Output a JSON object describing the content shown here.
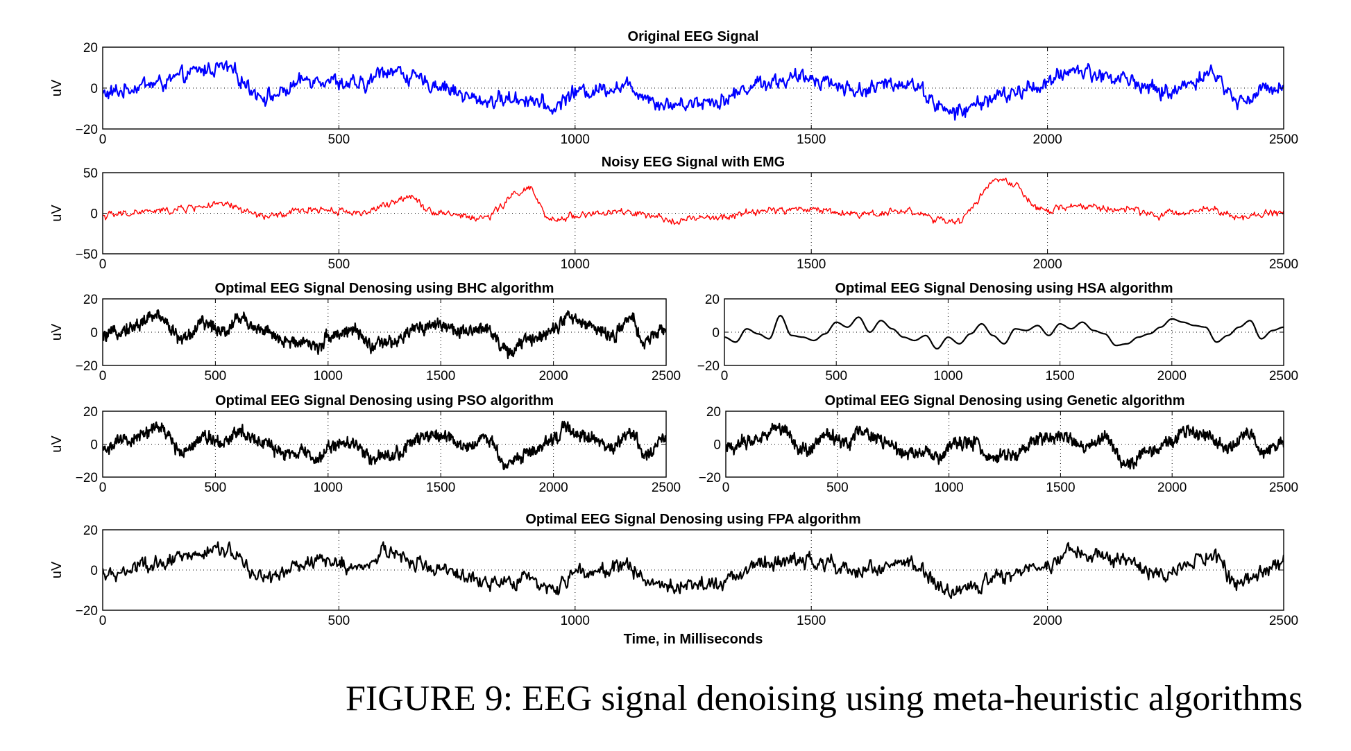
{
  "caption": "FIGURE 9: EEG signal denoising using meta-heuristic algorithms",
  "chart_data": [
    {
      "type": "line",
      "title": "Original EEG Signal",
      "ylabel": "uV",
      "xlabel": "",
      "xlim": [
        0,
        2500
      ],
      "ylim": [
        -20,
        20
      ],
      "xticks": [
        "0",
        "500",
        "1000",
        "1500",
        "2000",
        "2500"
      ],
      "yticks": [
        "20",
        "0",
        "−20"
      ],
      "grid": "dotted",
      "color": "#0000ff",
      "series": [
        {
          "x": [
            0,
            100,
            250,
            350,
            450,
            550,
            600,
            700,
            800,
            900,
            950,
            1000,
            1100,
            1200,
            1300,
            1400,
            1500,
            1600,
            1700,
            1800,
            1900,
            2000,
            2050,
            2150,
            2250,
            2350,
            2400,
            2500
          ],
          "values": [
            -3,
            2,
            10,
            -4,
            5,
            1,
            9,
            2,
            -6,
            -5,
            -10,
            -2,
            1,
            -8,
            -6,
            3,
            5,
            -1,
            3,
            -12,
            -4,
            2,
            9,
            5,
            -2,
            7,
            -6,
            2
          ]
        }
      ]
    },
    {
      "type": "line",
      "title": "Noisy EEG Signal with EMG",
      "ylabel": "uV",
      "xlabel": "",
      "xlim": [
        0,
        2500
      ],
      "ylim": [
        -50,
        50
      ],
      "xticks": [
        "0",
        "500",
        "1000",
        "1500",
        "2000",
        "2500"
      ],
      "yticks": [
        "50",
        "0",
        "−50"
      ],
      "grid": "dotted",
      "color": "#ff0000",
      "series": [
        {
          "x": [
            0,
            100,
            250,
            350,
            450,
            550,
            600,
            650,
            700,
            800,
            900,
            950,
            1000,
            1100,
            1200,
            1300,
            1400,
            1500,
            1600,
            1700,
            1800,
            1900,
            2000,
            2050,
            2150,
            2250,
            2350,
            2400,
            2500
          ],
          "values": [
            -3,
            2,
            10,
            -4,
            5,
            1,
            9,
            22,
            2,
            -6,
            30,
            -10,
            -2,
            1,
            -8,
            -6,
            3,
            5,
            -1,
            3,
            -12,
            42,
            2,
            9,
            5,
            -2,
            7,
            -6,
            2
          ]
        }
      ]
    },
    {
      "type": "line",
      "title": "Optimal EEG Signal Denosing using BHC algorithm",
      "ylabel": "uV",
      "xlabel": "",
      "xlim": [
        0,
        2500
      ],
      "ylim": [
        -20,
        20
      ],
      "xticks": [
        "0",
        "500",
        "1000",
        "1500",
        "2000",
        "2500"
      ],
      "yticks": [
        "20",
        "0",
        "−20"
      ],
      "grid": "dotted",
      "color": "#000000",
      "series": [
        {
          "x": [
            0,
            100,
            250,
            350,
            450,
            550,
            600,
            700,
            800,
            900,
            950,
            1000,
            1100,
            1200,
            1300,
            1400,
            1500,
            1600,
            1700,
            1800,
            1900,
            2000,
            2050,
            2150,
            2250,
            2350,
            2400,
            2500
          ],
          "values": [
            -3,
            2,
            10,
            -4,
            5,
            1,
            9,
            2,
            -6,
            -5,
            -10,
            -2,
            1,
            -8,
            -6,
            3,
            5,
            -1,
            3,
            -12,
            -4,
            2,
            9,
            5,
            -2,
            7,
            -6,
            2
          ]
        }
      ]
    },
    {
      "type": "line",
      "title": "Optimal EEG Signal Denosing using HSA algorithm",
      "ylabel": "",
      "xlabel": "",
      "xlim": [
        0,
        2500
      ],
      "ylim": [
        -20,
        20
      ],
      "xticks": [
        "0",
        "500",
        "1000",
        "1500",
        "2000",
        "2500"
      ],
      "yticks": [
        "20",
        "0",
        "−20"
      ],
      "grid": "dotted",
      "color": "#000000",
      "series": [
        {
          "x": [
            0,
            50,
            100,
            150,
            200,
            250,
            300,
            350,
            400,
            450,
            500,
            550,
            600,
            650,
            700,
            750,
            800,
            850,
            900,
            950,
            1000,
            1050,
            1100,
            1150,
            1200,
            1250,
            1300,
            1350,
            1400,
            1450,
            1500,
            1550,
            1600,
            1650,
            1700,
            1750,
            1800,
            1850,
            1900,
            1950,
            2000,
            2050,
            2100,
            2150,
            2200,
            2250,
            2300,
            2350,
            2400,
            2450,
            2500
          ],
          "values": [
            -3,
            -6,
            2,
            -1,
            -4,
            10,
            -2,
            -3,
            -5,
            -1,
            6,
            3,
            9,
            0,
            7,
            2,
            -3,
            -5,
            -2,
            -10,
            -3,
            -7,
            -1,
            5,
            -2,
            -7,
            2,
            1,
            4,
            -2,
            5,
            2,
            6,
            1,
            -1,
            -8,
            -7,
            -3,
            -1,
            3,
            8,
            6,
            4,
            3,
            -6,
            -2,
            3,
            7,
            -4,
            1,
            3
          ]
        }
      ]
    },
    {
      "type": "line",
      "title": "Optimal EEG Signal Denosing using PSO algorithm",
      "ylabel": "uV",
      "xlabel": "",
      "xlim": [
        0,
        2500
      ],
      "ylim": [
        -20,
        20
      ],
      "xticks": [
        "0",
        "500",
        "1000",
        "1500",
        "2000",
        "2500"
      ],
      "yticks": [
        "20",
        "0",
        "−20"
      ],
      "grid": "dotted",
      "color": "#000000",
      "series": [
        {
          "x": [
            0,
            100,
            250,
            350,
            450,
            550,
            600,
            700,
            800,
            900,
            950,
            1000,
            1100,
            1200,
            1300,
            1400,
            1500,
            1600,
            1700,
            1800,
            1900,
            2000,
            2050,
            2150,
            2250,
            2350,
            2400,
            2500
          ],
          "values": [
            -3,
            2,
            10,
            -4,
            5,
            1,
            9,
            2,
            -6,
            -5,
            -10,
            -2,
            1,
            -8,
            -6,
            3,
            5,
            -1,
            3,
            -12,
            -4,
            2,
            9,
            5,
            -2,
            7,
            -6,
            2
          ]
        }
      ]
    },
    {
      "type": "line",
      "title": "Optimal EEG Signal Denosing using Genetic algorithm",
      "ylabel": "",
      "xlabel": "",
      "xlim": [
        0,
        2500
      ],
      "ylim": [
        -20,
        20
      ],
      "xticks": [
        "0",
        "500",
        "1000",
        "1500",
        "2000",
        "2500"
      ],
      "yticks": [
        "20",
        "0",
        "−20"
      ],
      "grid": "dotted",
      "color": "#000000",
      "series": [
        {
          "x": [
            0,
            100,
            250,
            350,
            450,
            550,
            600,
            700,
            800,
            900,
            950,
            1000,
            1100,
            1200,
            1300,
            1400,
            1500,
            1600,
            1700,
            1800,
            1900,
            2000,
            2050,
            2150,
            2250,
            2350,
            2400,
            2500
          ],
          "values": [
            -3,
            2,
            10,
            -4,
            5,
            1,
            9,
            2,
            -6,
            -5,
            -10,
            -2,
            1,
            -8,
            -6,
            3,
            5,
            -1,
            3,
            -12,
            -4,
            2,
            9,
            5,
            -2,
            7,
            -6,
            2
          ]
        }
      ]
    },
    {
      "type": "line",
      "title": "Optimal EEG Signal Denosing using FPA algorithm",
      "ylabel": "uV",
      "xlabel": "Time, in Milliseconds",
      "xlim": [
        0,
        2500
      ],
      "ylim": [
        -20,
        20
      ],
      "xticks": [
        "0",
        "500",
        "1000",
        "1500",
        "2000",
        "2500"
      ],
      "yticks": [
        "20",
        "0",
        "−20"
      ],
      "grid": "dotted",
      "color": "#000000",
      "series": [
        {
          "x": [
            0,
            100,
            250,
            350,
            450,
            550,
            600,
            700,
            800,
            900,
            950,
            1000,
            1100,
            1200,
            1300,
            1400,
            1500,
            1600,
            1700,
            1800,
            1900,
            2000,
            2050,
            2150,
            2250,
            2350,
            2400,
            2500
          ],
          "values": [
            -3,
            2,
            10,
            -4,
            5,
            1,
            9,
            2,
            -6,
            -5,
            -10,
            -2,
            1,
            -8,
            -6,
            3,
            5,
            -1,
            3,
            -12,
            -4,
            2,
            9,
            5,
            -2,
            7,
            -6,
            2
          ]
        }
      ]
    }
  ]
}
